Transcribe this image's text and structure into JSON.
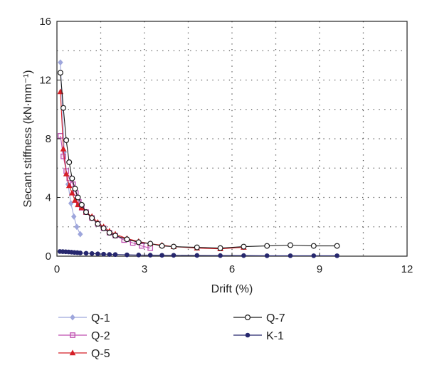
{
  "chart_data": {
    "type": "line",
    "xlabel": "Drift (%)",
    "ylabel": "Secant stiffness (kN·mm⁻¹)",
    "xlim": [
      0,
      12
    ],
    "ylim": [
      0,
      16
    ],
    "xticks": [
      "0",
      "3",
      "6",
      "9",
      "12"
    ],
    "yticks": [
      "0",
      "4",
      "8",
      "12",
      "16"
    ],
    "grid": true,
    "legend_position": "below",
    "series": [
      {
        "name": "Q-1",
        "color": "#9ea6dc",
        "marker": "diamond",
        "x": [
          0.12,
          0.25,
          0.38,
          0.48,
          0.58,
          0.68,
          0.8
        ],
        "y": [
          13.2,
          7.1,
          4.9,
          3.6,
          2.7,
          2.0,
          1.5
        ]
      },
      {
        "name": "Q-2",
        "color": "#bf4fb1",
        "marker": "square",
        "x": [
          0.12,
          0.22,
          0.32,
          0.42,
          0.55,
          0.65,
          0.75,
          0.85,
          1.0,
          1.2,
          1.4,
          1.6,
          1.8,
          2.0,
          2.3,
          2.6,
          2.9,
          3.2
        ],
        "y": [
          8.2,
          6.8,
          5.8,
          5.3,
          4.9,
          4.3,
          3.7,
          3.3,
          3.0,
          2.6,
          2.2,
          1.9,
          1.6,
          1.4,
          1.1,
          0.9,
          0.7,
          0.55
        ]
      },
      {
        "name": "Q-5",
        "color": "#d41f26",
        "marker": "triangle",
        "x": [
          0.12,
          0.22,
          0.32,
          0.42,
          0.52,
          0.62,
          0.72,
          0.85,
          1.0,
          1.2,
          1.4,
          1.6,
          1.8,
          2.0,
          2.4,
          2.8,
          3.2,
          3.6,
          4.0,
          4.8,
          5.6,
          6.4
        ],
        "y": [
          11.2,
          7.3,
          5.6,
          4.8,
          4.3,
          3.8,
          3.5,
          3.3,
          3.0,
          2.7,
          2.3,
          2.0,
          1.7,
          1.5,
          1.2,
          1.0,
          0.85,
          0.75,
          0.65,
          0.55,
          0.5,
          0.6
        ]
      },
      {
        "name": "Q-7",
        "color": "#1a1a1a",
        "marker": "circle-open",
        "x": [
          0.12,
          0.22,
          0.32,
          0.42,
          0.52,
          0.62,
          0.72,
          0.85,
          1.0,
          1.2,
          1.4,
          1.6,
          1.8,
          2.0,
          2.4,
          2.8,
          3.2,
          3.6,
          4.0,
          4.8,
          5.6,
          6.4,
          7.2,
          8.0,
          8.8,
          9.6
        ],
        "y": [
          12.5,
          10.1,
          7.9,
          6.4,
          5.3,
          4.6,
          4.0,
          3.5,
          3.0,
          2.6,
          2.2,
          1.9,
          1.6,
          1.4,
          1.15,
          0.95,
          0.85,
          0.7,
          0.65,
          0.6,
          0.55,
          0.65,
          0.7,
          0.75,
          0.7,
          0.7
        ]
      },
      {
        "name": "K-1",
        "color": "#26276e",
        "marker": "circle-filled",
        "x": [
          0.1,
          0.2,
          0.3,
          0.4,
          0.5,
          0.6,
          0.7,
          0.8,
          1.0,
          1.2,
          1.4,
          1.6,
          1.8,
          2.0,
          2.4,
          2.8,
          3.2,
          3.6,
          4.0,
          4.8,
          5.6,
          6.4,
          7.2,
          8.0,
          8.8,
          9.6
        ],
        "y": [
          0.32,
          0.31,
          0.3,
          0.29,
          0.27,
          0.25,
          0.24,
          0.22,
          0.2,
          0.18,
          0.16,
          0.14,
          0.12,
          0.11,
          0.09,
          0.08,
          0.07,
          0.06,
          0.06,
          0.05,
          0.04,
          0.04,
          0.03,
          0.03,
          0.03,
          0.03
        ]
      }
    ]
  }
}
